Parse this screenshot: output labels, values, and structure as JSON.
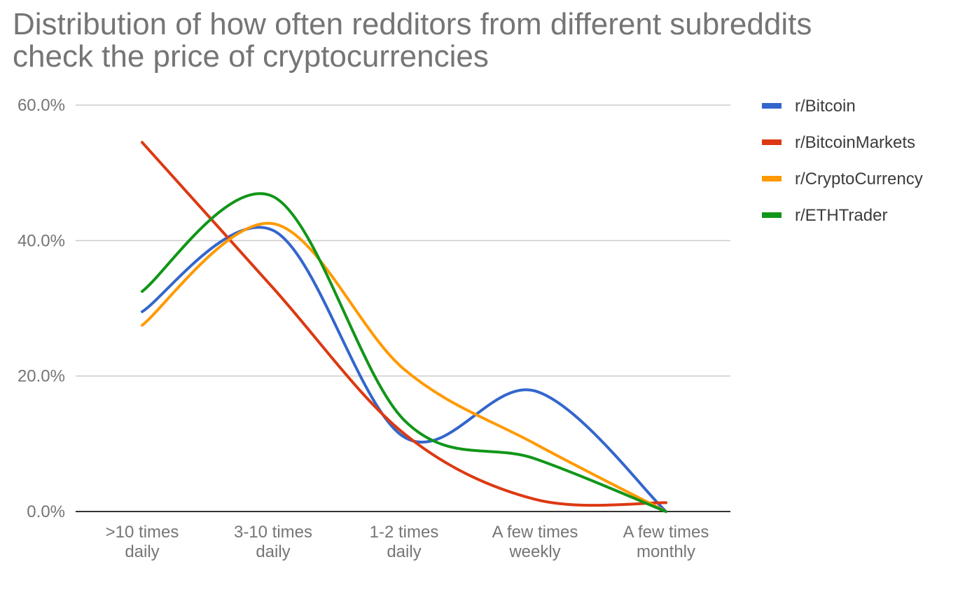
{
  "title_lines": [
    "Distribution of how often redditors from different subreddits",
    "check the price of cryptocurrencies"
  ],
  "chart_data": {
    "type": "line",
    "title": "Distribution of how often redditors from different subreddits check the price of cryptocurrencies",
    "categories": [
      ">10 times daily",
      "3-10 times daily",
      "1-2 times daily",
      "A few times weekly",
      "A few times monthly"
    ],
    "category_lines": [
      [
        ">10 times",
        "daily"
      ],
      [
        "3-10 times",
        "daily"
      ],
      [
        "1-2 times",
        "daily"
      ],
      [
        "A few times",
        "weekly"
      ],
      [
        "A few times",
        "monthly"
      ]
    ],
    "y_ticks": [
      "0.0%",
      "20.0%",
      "40.0%",
      "60.0%"
    ],
    "y_tick_values": [
      0,
      20,
      40,
      60
    ],
    "ylim": [
      0,
      60
    ],
    "smooth": true,
    "grid": true,
    "legend_position": "right",
    "series": [
      {
        "name": "r/Bitcoin",
        "color": "#3366cc",
        "values": [
          29.5,
          41.5,
          11.0,
          17.8,
          0.0
        ]
      },
      {
        "name": "r/BitcoinMarkets",
        "color": "#dc3912",
        "values": [
          54.5,
          33.0,
          11.5,
          1.8,
          1.3
        ]
      },
      {
        "name": "r/CryptoCurrency",
        "color": "#ff9900",
        "values": [
          27.5,
          42.5,
          21.0,
          10.0,
          0.0
        ]
      },
      {
        "name": "r/ETHTrader",
        "color": "#109618",
        "values": [
          32.5,
          46.5,
          13.5,
          7.8,
          0.0
        ]
      }
    ]
  }
}
